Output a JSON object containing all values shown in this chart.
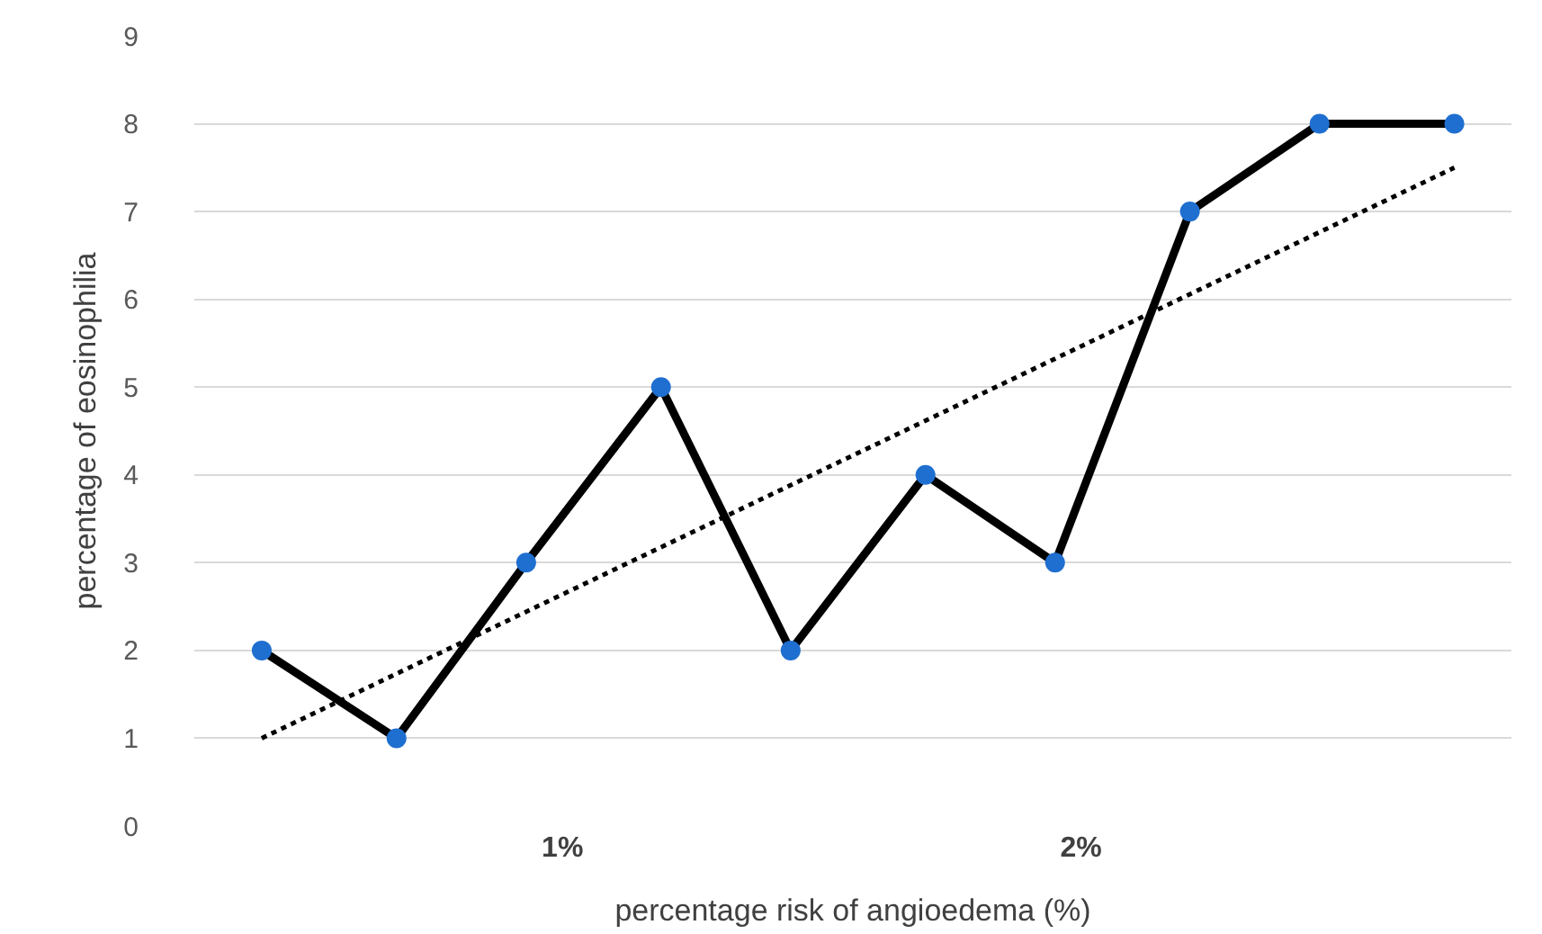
{
  "chart_data": {
    "type": "line",
    "xlabel": "percentage risk of angioedema (%)",
    "ylabel": "percentage of eosinophilia",
    "x": [
      0.42,
      0.68,
      0.93,
      1.19,
      1.44,
      1.7,
      1.95,
      2.21,
      2.46,
      2.72
    ],
    "series": [
      {
        "color": "#000000",
        "colors": [
          "#1f6fd0",
          "#1f6fd0",
          "#1f6fd0",
          "#1f6fd0",
          "#1f6fd0",
          "#1f6fd0",
          "#1f6fd0",
          "#1f6fd0",
          "#1f6fd0",
          "#1f6fd0"
        ],
        "values": [
          2,
          1,
          3,
          5,
          2,
          4,
          3,
          7,
          8,
          8
        ],
        "marker": "circle",
        "line_style": "solid"
      },
      {
        "type": "line",
        "x": [
          0.42,
          2.72
        ],
        "color": "#000000",
        "values": [
          1.0,
          7.5
        ],
        "marker": "none",
        "line_style": "dotted"
      }
    ],
    "xlim": [
      0.29,
      2.83
    ],
    "xticks": [
      {
        "value": 1,
        "label": "1%"
      },
      {
        "value": 2,
        "label": "2%"
      }
    ],
    "ylim": [
      0,
      9
    ],
    "yticks": [
      0,
      1,
      2,
      3,
      4,
      5,
      6,
      7,
      8,
      9
    ],
    "grid": "y"
  }
}
